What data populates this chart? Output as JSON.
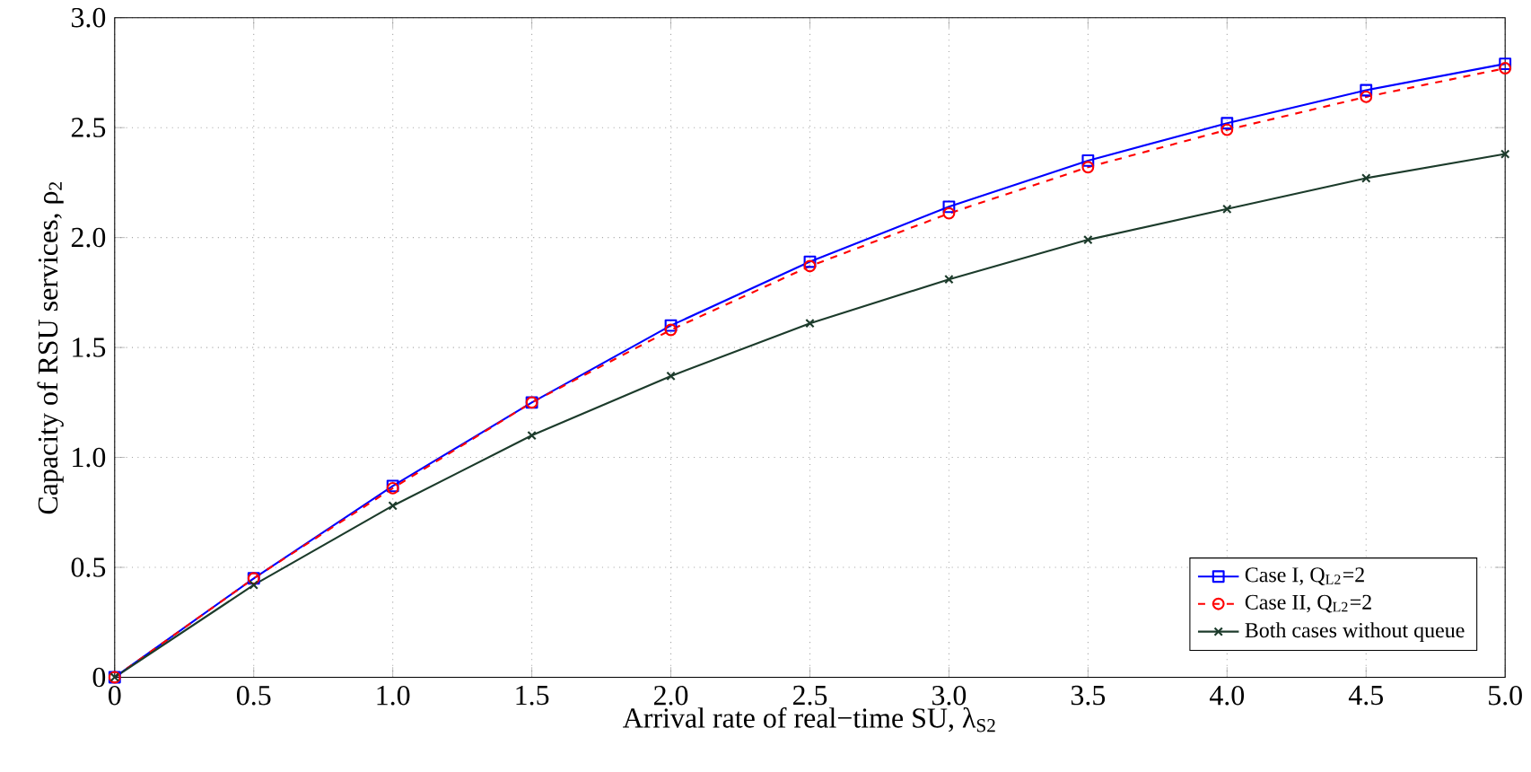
{
  "chart_data": {
    "type": "line",
    "xlabel": "Arrival rate of real−time SU,  λ$_{S2}$",
    "ylabel": "Capacity of RSU services,  ρ$_{2}$",
    "x": [
      0,
      0.5,
      1,
      1.5,
      2,
      2.5,
      3,
      3.5,
      4,
      4.5,
      5
    ],
    "series": [
      {
        "name": "Case I,  Q$_{L2}$=2",
        "color": "#0000ff",
        "marker": "square",
        "line_style": "solid",
        "values": [
          0,
          0.45,
          0.87,
          1.25,
          1.6,
          1.89,
          2.14,
          2.35,
          2.52,
          2.67,
          2.79
        ]
      },
      {
        "name": "Case II,  Q$_{L2}$=2",
        "color": "#ff0000",
        "marker": "circle",
        "line_style": "dashed",
        "values": [
          0,
          0.45,
          0.86,
          1.25,
          1.58,
          1.87,
          2.11,
          2.32,
          2.49,
          2.64,
          2.77
        ]
      },
      {
        "name": "Both cases without queue",
        "color": "#1c3b2b",
        "marker": "cross",
        "line_style": "solid",
        "values": [
          0,
          0.42,
          0.78,
          1.1,
          1.37,
          1.61,
          1.81,
          1.99,
          2.13,
          2.27,
          2.38
        ]
      }
    ],
    "xlim": [
      0,
      5
    ],
    "xticks": [
      0,
      0.5,
      {
        "value": 1,
        "label": "1.0"
      },
      1.5,
      {
        "value": 2,
        "label": "2.0"
      },
      2.5,
      {
        "value": 3,
        "label": "3.0"
      },
      3.5,
      {
        "value": 4,
        "label": "4.0"
      },
      4.5,
      {
        "value": 5,
        "label": "5.0"
      }
    ],
    "ylim": [
      0,
      3
    ],
    "yticks": [
      0,
      0.5,
      {
        "value": 1,
        "label": "1.0"
      },
      1.5,
      {
        "value": 2,
        "label": "2.0"
      },
      2.5,
      {
        "value": 3,
        "label": "3.0"
      }
    ],
    "grid": true,
    "legend": "bottom right"
  }
}
